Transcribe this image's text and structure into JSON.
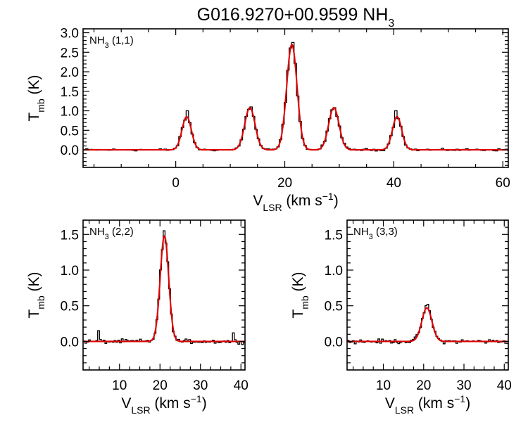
{
  "figure": {
    "title": "G016.9270+00.9599 NH",
    "title_sub": "3"
  },
  "chart_data": [
    {
      "type": "line",
      "label": "NH",
      "label_sub": "3",
      "label_tail": " (1,1)",
      "xlabel": "V",
      "xlabel_sub": "LSR",
      "xlabel_tail": " (km s",
      "xlabel_sup": "−1",
      "xlabel_end": ")",
      "ylabel": "T",
      "ylabel_sub": "mb",
      "ylabel_tail": " (K)",
      "xlim": [
        -17,
        61
      ],
      "ylim": [
        -0.45,
        3.1
      ],
      "xticks": [
        0,
        20,
        40,
        60
      ],
      "xtick_labels": [
        "0",
        "20",
        "40",
        "60"
      ],
      "yticks": [
        0.0,
        0.5,
        1.0,
        1.5,
        2.0,
        2.5,
        3.0
      ],
      "ytick_labels": [
        "0.0",
        "0.5",
        "1.0",
        "1.5",
        "2.0",
        "2.5",
        "3.0"
      ],
      "colors": {
        "observed": "#000000",
        "fit": "#e00000"
      },
      "series": [
        {
          "kind": "fit",
          "components": [
            {
              "center": 2.0,
              "amp": 0.85,
              "sigma": 0.85
            },
            {
              "center": 13.6,
              "amp": 1.08,
              "sigma": 0.95
            },
            {
              "center": 21.3,
              "amp": 2.7,
              "sigma": 0.95
            },
            {
              "center": 29.0,
              "amp": 1.08,
              "sigma": 0.95
            },
            {
              "center": 40.6,
              "amp": 0.85,
              "sigma": 0.85
            }
          ]
        },
        {
          "kind": "observed",
          "channel_width": 0.45,
          "peak_values": [
            [
              2.0,
              1.0
            ],
            [
              13.6,
              1.1
            ],
            [
              21.3,
              2.75
            ],
            [
              29.0,
              1.05
            ],
            [
              40.6,
              1.0
            ]
          ]
        }
      ]
    },
    {
      "type": "line",
      "label": "NH",
      "label_sub": "3",
      "label_tail": " (2,2)",
      "xlabel": "V",
      "xlabel_sub": "LSR",
      "xlabel_tail": " (km s",
      "xlabel_sup": "−1",
      "xlabel_end": ")",
      "ylabel": "T",
      "ylabel_sub": "mb",
      "ylabel_tail": " (K)",
      "xlim": [
        1,
        41
      ],
      "ylim": [
        -0.4,
        1.7
      ],
      "xticks": [
        10,
        20,
        30,
        40
      ],
      "xtick_labels": [
        "10",
        "20",
        "30",
        "40"
      ],
      "yticks": [
        0.0,
        0.5,
        1.0,
        1.5
      ],
      "ytick_labels": [
        "0.0",
        "0.5",
        "1.0",
        "1.5"
      ],
      "colors": {
        "observed": "#000000",
        "fit": "#e00000"
      },
      "series": [
        {
          "kind": "fit",
          "components": [
            {
              "center": 21.1,
              "amp": 1.48,
              "sigma": 1.05
            }
          ]
        },
        {
          "kind": "observed",
          "channel_width": 0.45,
          "peak_values": [
            [
              21.1,
              1.55
            ],
            [
              4.7,
              0.15
            ],
            [
              38.0,
              0.12
            ]
          ]
        }
      ]
    },
    {
      "type": "line",
      "label": "NH",
      "label_sub": "3",
      "label_tail": " (3,3)",
      "xlabel": "V",
      "xlabel_sub": "LSR",
      "xlabel_tail": " (km s",
      "xlabel_sup": "−1",
      "xlabel_end": ")",
      "ylabel": "T",
      "ylabel_sub": "mb",
      "ylabel_tail": " (K)",
      "xlim": [
        1,
        41
      ],
      "ylim": [
        -0.4,
        1.7
      ],
      "xticks": [
        10,
        20,
        30,
        40
      ],
      "xtick_labels": [
        "10",
        "20",
        "30",
        "40"
      ],
      "yticks": [
        0.0,
        0.5,
        1.0,
        1.5
      ],
      "ytick_labels": [
        "0.0",
        "0.5",
        "1.0",
        "1.5"
      ],
      "colors": {
        "observed": "#000000",
        "fit": "#e00000"
      },
      "series": [
        {
          "kind": "fit",
          "components": [
            {
              "center": 20.8,
              "amp": 0.47,
              "sigma": 1.25
            }
          ]
        },
        {
          "kind": "observed",
          "channel_width": 0.45,
          "peak_values": [
            [
              20.8,
              0.52
            ]
          ]
        }
      ]
    }
  ]
}
